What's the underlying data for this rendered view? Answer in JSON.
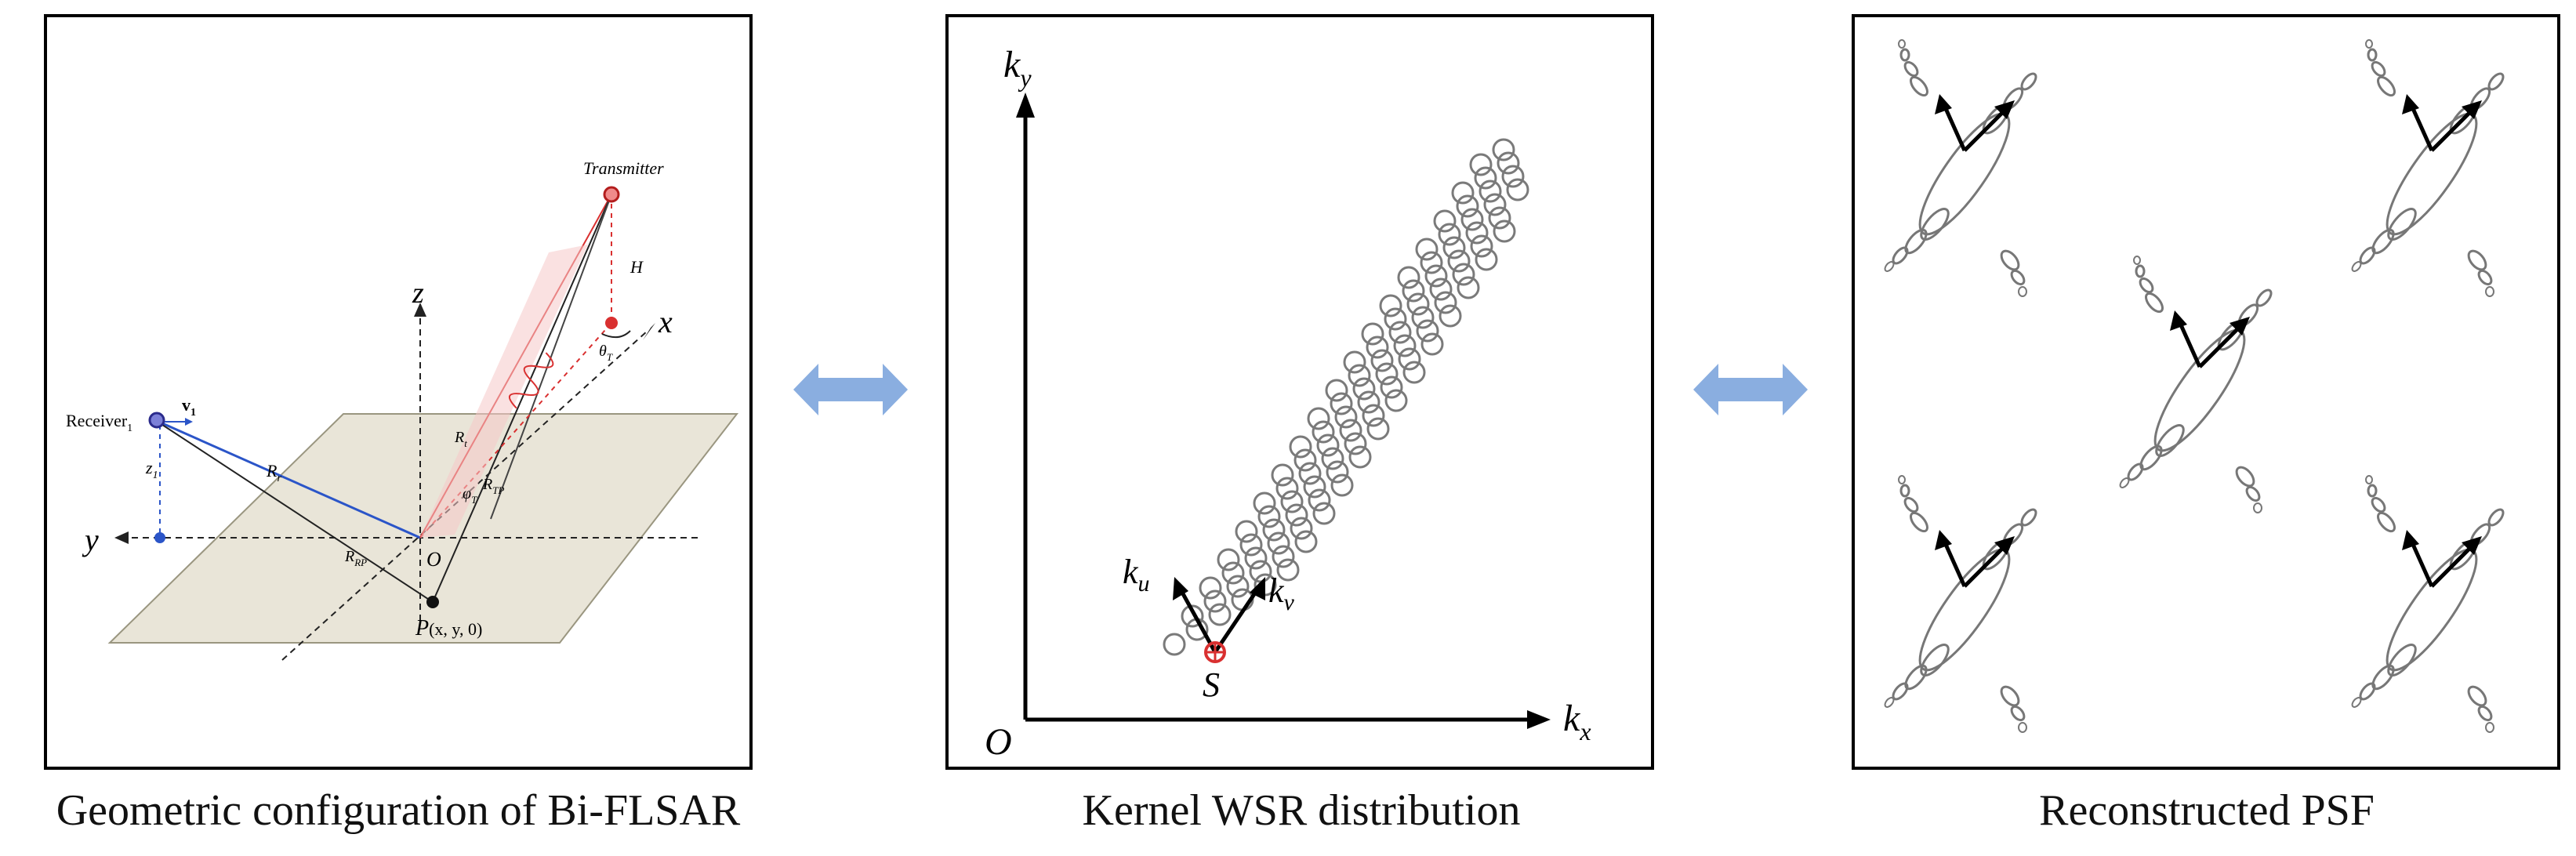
{
  "captions": {
    "left": "Geometric configuration of Bi-FLSAR",
    "middle": "Kernel WSR distribution",
    "right": "Reconstructed PSF"
  },
  "geometry": {
    "transmitter": "Transmitter",
    "receiver": "Receiver",
    "receiver_sub": "1",
    "v_label": "v",
    "v_sub": "1",
    "z1": "z",
    "z1_sub": "1",
    "H": "H",
    "axis_x": "x",
    "axis_y": "y",
    "axis_z": "z",
    "origin": "O",
    "point": "P",
    "point_coords": "(x, y, 0)",
    "R_r": "R",
    "R_r_sub": "r",
    "R_t": "R",
    "R_t_sub": "t",
    "R_TP": "R",
    "R_TP_sub": "TP",
    "R_RP": "R",
    "R_RP_sub": "RP",
    "theta": "θ",
    "theta_sub": "T",
    "phi": "φ",
    "phi_sub": "T"
  },
  "wsr": {
    "axis_y": "k",
    "axis_y_sub": "y",
    "axis_x": "k",
    "axis_x_sub": "x",
    "origin": "O",
    "ku": "k",
    "ku_sub": "u",
    "kv": "k",
    "kv_sub": "v",
    "source": "S"
  },
  "colors": {
    "double_arrow": "#8aaee0",
    "ground_plane": "#e9e5d8",
    "transmitter_red": "#d93030",
    "receiver_blue": "#2b55c8",
    "circle_gray": "#7a7a7a"
  }
}
